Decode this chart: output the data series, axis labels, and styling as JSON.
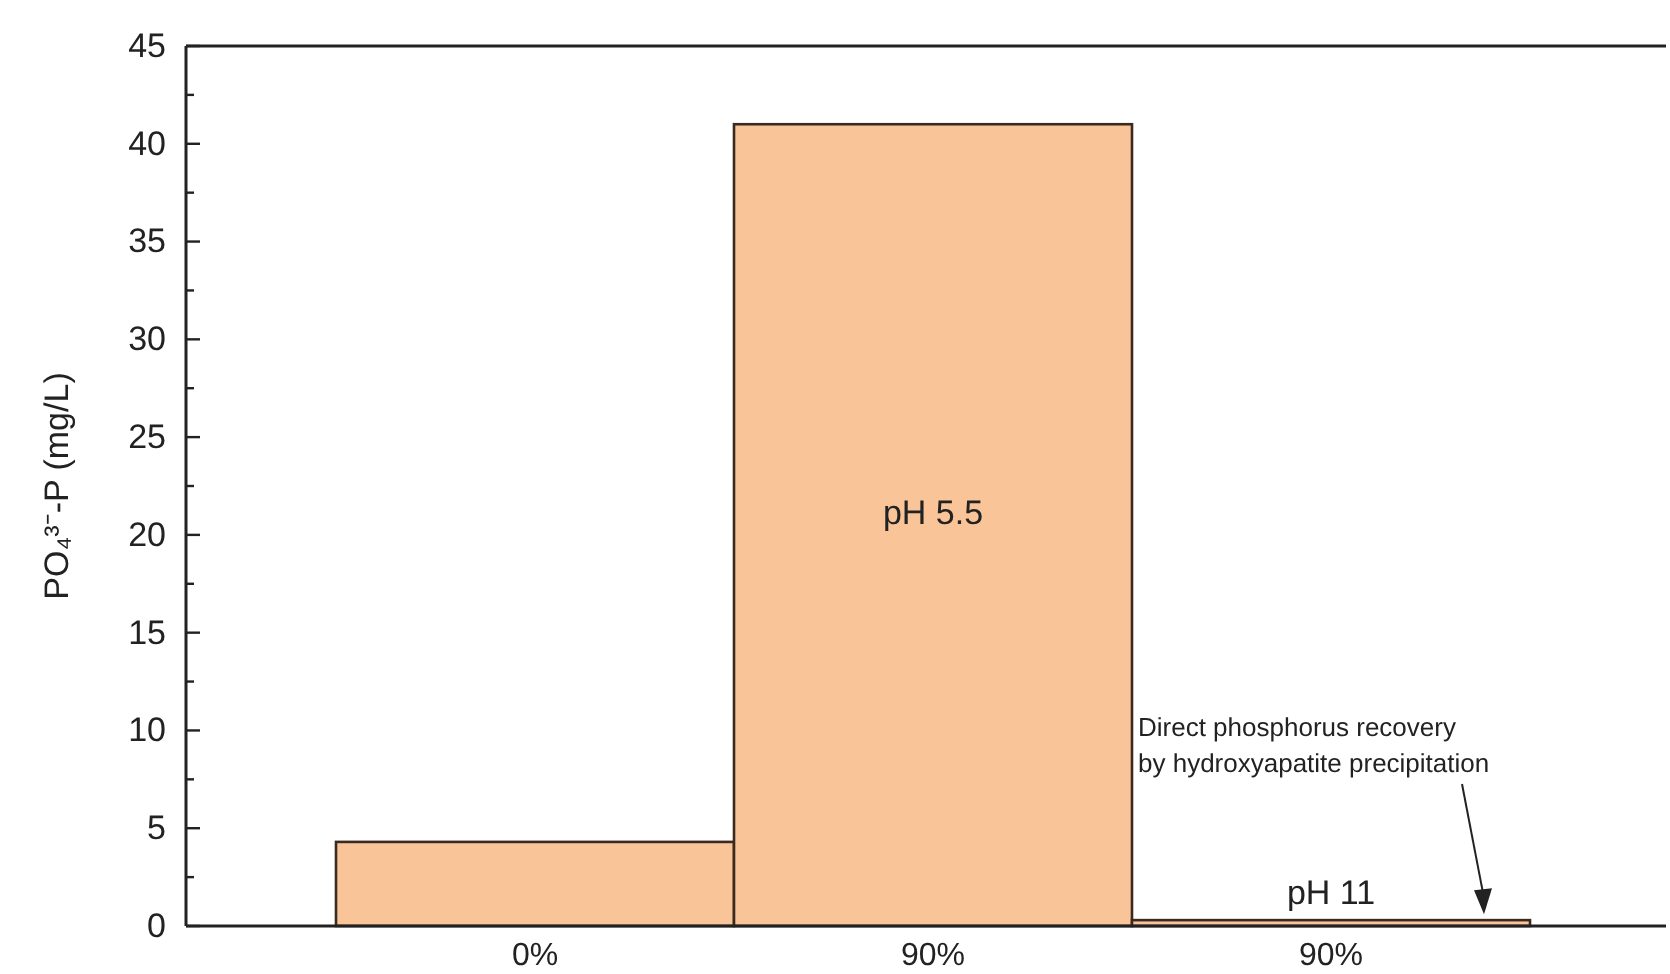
{
  "chart_data": {
    "type": "bar",
    "ylabel": "PO₄³⁻-P (mg/L)",
    "categories": [
      "0%",
      "90%",
      "90%"
    ],
    "values": [
      4.3,
      41.0,
      0.3
    ],
    "color": "#f9c498",
    "ylim": [
      0,
      45
    ],
    "yticks": [
      0,
      {
        "value": 2.5,
        "label": null
      },
      5,
      {
        "value": 7.5,
        "label": null
      },
      10,
      {
        "value": 12.5,
        "label": null
      },
      15,
      {
        "value": 17.5,
        "label": null
      },
      20,
      {
        "value": 22.5,
        "label": null
      },
      25,
      {
        "value": 27.5,
        "label": null
      },
      30,
      {
        "value": 32.5,
        "label": null
      },
      35,
      {
        "value": 37.5,
        "label": null
      },
      40,
      {
        "value": 42.5,
        "label": null
      },
      45
    ],
    "annotations": [
      "pH 5.5",
      "pH 11",
      "Direct phosphorus recovery by hydroxyapatite precipitation"
    ]
  }
}
